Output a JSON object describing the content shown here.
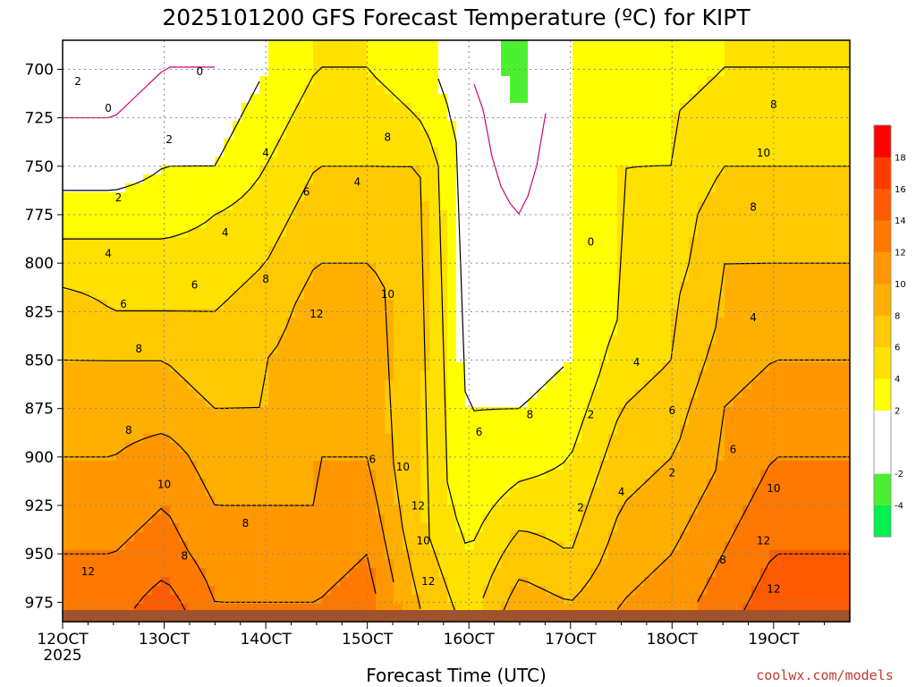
{
  "chart_data": {
    "type": "heatmap",
    "title": "2025101200 GFS Forecast Temperature (ºC) for KIPT",
    "xlabel": "Forecast Time (UTC)",
    "ylabel": "",
    "x_ticks": [
      "12OCT",
      "13OCT",
      "14OCT",
      "15OCT",
      "16OCT",
      "17OCT",
      "18OCT",
      "19OCT"
    ],
    "x_year": "2025",
    "x_range_days": [
      12,
      19.75
    ],
    "y_ticks": [
      700,
      725,
      750,
      775,
      800,
      825,
      850,
      875,
      900,
      925,
      950,
      975
    ],
    "y_range_hpa": [
      685,
      985
    ],
    "colorbar": {
      "levels": [
        -6,
        -4,
        -2,
        0,
        2,
        4,
        6,
        8,
        10,
        12,
        14,
        16,
        18,
        20
      ],
      "labels": [
        "-4",
        "-2",
        "2",
        "4",
        "6",
        "8",
        "10",
        "12",
        "14",
        "16",
        "18"
      ],
      "colors": [
        "#00f050",
        "#4df030",
        "#ffffff",
        "#ffffff",
        "#ffff00",
        "#ffe100",
        "#ffc800",
        "#ffaf00",
        "#ff9600",
        "#ff7800",
        "#ff5a00",
        "#ff3c00",
        "#ff0000"
      ]
    },
    "contour_labels": [
      "2",
      "0",
      "0",
      "2",
      "2",
      "4",
      "4",
      "6",
      "6",
      "8",
      "8",
      "8",
      "10",
      "10",
      "12",
      "12",
      "4",
      "4",
      "6",
      "6",
      "8",
      "8",
      "10",
      "12",
      "10",
      "12",
      "6",
      "8",
      "2",
      "0",
      "2",
      "4",
      "6",
      "4",
      "2",
      "4",
      "6",
      "8",
      "10",
      "8",
      "8",
      "10",
      "12",
      "12",
      "8"
    ],
    "time_profiles": [
      {
        "day": 12.0,
        "temps": [
          -1,
          0,
          1,
          3,
          5,
          7,
          8,
          9,
          10,
          11,
          12,
          13
        ]
      },
      {
        "day": 12.5,
        "temps": [
          -1,
          0,
          1,
          3,
          5,
          6,
          8,
          9,
          10,
          11,
          12,
          13
        ]
      },
      {
        "day": 13.0,
        "temps": [
          0,
          1,
          2,
          3,
          5,
          6,
          8,
          9,
          11,
          12,
          13,
          15
        ]
      },
      {
        "day": 13.5,
        "temps": [
          0,
          1,
          2,
          4,
          5,
          6,
          7,
          8,
          9,
          10,
          11,
          12
        ]
      },
      {
        "day": 14.0,
        "temps": [
          2,
          3,
          4,
          5,
          6,
          7,
          8,
          8,
          9,
          10,
          11,
          12
        ]
      },
      {
        "day": 14.5,
        "temps": [
          4,
          5,
          6,
          7,
          8,
          9,
          9,
          10,
          10,
          10,
          11,
          12
        ]
      },
      {
        "day": 15.0,
        "temps": [
          4,
          5,
          6,
          7,
          8,
          9,
          9,
          9,
          10,
          11,
          12,
          13
        ]
      },
      {
        "day": 15.5,
        "temps": [
          3,
          4,
          6,
          7,
          7,
          7,
          7,
          6,
          6,
          6,
          7,
          8
        ]
      },
      {
        "day": 16.0,
        "temps": [
          0,
          1,
          1,
          1,
          1,
          1,
          1,
          2,
          2,
          3,
          4,
          5
        ]
      },
      {
        "day": 16.5,
        "temps": [
          -3,
          -2,
          -1,
          0,
          1,
          1,
          1,
          2,
          3,
          5,
          7,
          9
        ]
      },
      {
        "day": 17.0,
        "temps": [
          2,
          2,
          2,
          2,
          2,
          2,
          2,
          3,
          4,
          5,
          6,
          8
        ]
      },
      {
        "day": 17.5,
        "temps": [
          3,
          3,
          4,
          4,
          4,
          4,
          5,
          6,
          7,
          8,
          9,
          10
        ]
      },
      {
        "day": 18.0,
        "temps": [
          3,
          4,
          4,
          5,
          5,
          6,
          6,
          7,
          8,
          9,
          10,
          11
        ]
      },
      {
        "day": 18.5,
        "temps": [
          4,
          5,
          6,
          7,
          8,
          8,
          9,
          10,
          10,
          11,
          12,
          13
        ]
      },
      {
        "day": 19.0,
        "temps": [
          4,
          5,
          6,
          7,
          8,
          9,
          10,
          11,
          12,
          13,
          14,
          15
        ]
      },
      {
        "day": 19.5,
        "temps": [
          4,
          5,
          6,
          7,
          8,
          9,
          10,
          11,
          12,
          13,
          14,
          15
        ]
      }
    ]
  },
  "credit": "coolwx.com/models",
  "colors": {
    "ground": "#a0522d",
    "freezing_line": "#cc0077",
    "contour": "#000000",
    "gridline": "#888888"
  }
}
